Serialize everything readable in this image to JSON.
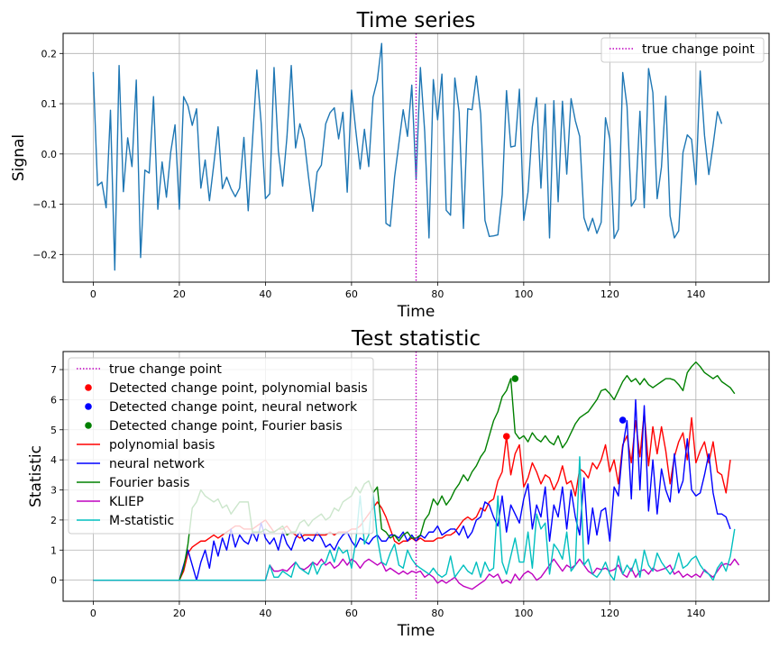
{
  "chart_data": [
    {
      "type": "line",
      "title": "Time series",
      "xlabel": "Time",
      "ylabel": "Signal",
      "xlim": [
        -7,
        157
      ],
      "ylim": [
        -0.255,
        0.24
      ],
      "xticks": [
        0,
        20,
        40,
        60,
        80,
        100,
        120,
        140
      ],
      "yticks": [
        -0.2,
        -0.1,
        0.0,
        0.1,
        0.2
      ],
      "ytick_labels": [
        "−0.2",
        "−0.1",
        "0.0",
        "0.1",
        "0.2"
      ],
      "grid": true,
      "legend_position": "upper right",
      "vline": {
        "x": 75,
        "name": "true change point",
        "color": "#bf00bf"
      },
      "series": [
        {
          "color": "#1f77b4",
          "values": [
            0.163,
            -0.063,
            -0.056,
            -0.107,
            0.087,
            -0.231,
            0.176,
            -0.075,
            0.032,
            -0.025,
            0.147,
            -0.206,
            -0.032,
            -0.038,
            0.114,
            -0.11,
            -0.016,
            -0.086,
            0.004,
            0.058,
            -0.11,
            0.114,
            0.096,
            0.057,
            0.09,
            -0.068,
            -0.012,
            -0.093,
            -0.021,
            0.054,
            -0.069,
            -0.046,
            -0.069,
            -0.085,
            -0.068,
            0.033,
            -0.113,
            0.028,
            0.167,
            0.062,
            -0.089,
            -0.079,
            0.172,
            0.006,
            -0.064,
            0.034,
            0.176,
            0.012,
            0.06,
            0.029,
            -0.045,
            -0.114,
            -0.036,
            -0.022,
            0.06,
            0.082,
            0.092,
            0.03,
            0.083,
            -0.076,
            0.127,
            0.046,
            -0.03,
            0.049,
            -0.025,
            0.113,
            0.147,
            0.22,
            -0.138,
            -0.144,
            -0.046,
            0.021,
            0.088,
            0.035,
            0.137,
            -0.051,
            0.172,
            0.044,
            -0.167,
            0.148,
            0.068,
            0.159,
            -0.112,
            -0.122,
            0.151,
            0.083,
            -0.148,
            0.09,
            0.088,
            0.155,
            0.08,
            -0.132,
            -0.164,
            -0.163,
            -0.161,
            -0.081,
            0.126,
            0.014,
            0.016,
            0.129,
            -0.132,
            -0.076,
            0.054,
            0.112,
            -0.068,
            0.099,
            -0.167,
            0.106,
            -0.095,
            0.105,
            -0.04,
            0.11,
            0.066,
            0.035,
            -0.127,
            -0.153,
            -0.128,
            -0.158,
            -0.136,
            0.072,
            0.03,
            -0.168,
            -0.15,
            0.162,
            0.095,
            -0.104,
            -0.09,
            0.085,
            -0.107,
            0.17,
            0.122,
            -0.089,
            -0.026,
            0.115,
            -0.123,
            -0.167,
            -0.153,
            0.003,
            0.038,
            0.029,
            -0.061,
            0.165,
            0.037,
            -0.041,
            0.018,
            0.084,
            0.06
          ]
        }
      ]
    },
    {
      "type": "line",
      "title": "Test statistic",
      "xlabel": "Time",
      "ylabel": "Statistic",
      "xlim": [
        -7,
        157
      ],
      "ylim": [
        -0.7,
        7.6
      ],
      "xticks": [
        0,
        20,
        40,
        60,
        80,
        100,
        120,
        140
      ],
      "yticks": [
        0,
        1,
        2,
        3,
        4,
        5,
        6,
        7
      ],
      "grid": true,
      "legend_position": "upper left",
      "vline": {
        "x": 75,
        "name": "true change point",
        "color": "#bf00bf"
      },
      "points": [
        {
          "name": "Detected change point, polynomial basis",
          "color": "#ff0000",
          "x": 96,
          "y": 4.78
        },
        {
          "name": "Detected change point, neural network",
          "color": "#0000ff",
          "x": 123,
          "y": 5.32
        },
        {
          "name": "Detected change point, Fourier basis",
          "color": "#008000",
          "x": 98,
          "y": 6.7
        }
      ],
      "series": [
        {
          "name": "polynomial basis",
          "color": "#ff0000",
          "values": [
            0,
            0,
            0,
            0,
            0,
            0,
            0,
            0,
            0,
            0,
            0,
            0,
            0,
            0,
            0,
            0,
            0,
            0,
            0,
            0,
            0,
            0.3,
            0.9,
            1.1,
            1.2,
            1.3,
            1.3,
            1.4,
            1.5,
            1.4,
            1.5,
            1.6,
            1.7,
            1.8,
            1.8,
            1.7,
            1.7,
            1.7,
            1.8,
            1.9,
            2.0,
            1.8,
            1.6,
            1.7,
            1.7,
            1.8,
            1.6,
            1.5,
            1.4,
            1.5,
            1.5,
            1.5,
            1.5,
            1.5,
            1.5,
            1.6,
            1.5,
            1.6,
            1.6,
            1.6,
            1.7,
            1.7,
            1.8,
            2.0,
            2.2,
            2.4,
            2.6,
            2.4,
            2.1,
            1.7,
            1.3,
            1.2,
            1.3,
            1.3,
            1.4,
            1.3,
            1.4,
            1.3,
            1.3,
            1.3,
            1.4,
            1.4,
            1.5,
            1.5,
            1.6,
            1.8,
            2.0,
            2.1,
            2.0,
            2.1,
            2.4,
            2.3,
            2.6,
            2.7,
            3.3,
            3.6,
            4.78,
            3.5,
            4.2,
            4.5,
            3.1,
            3.4,
            3.9,
            3.6,
            3.2,
            3.5,
            3.4,
            3.0,
            3.3,
            3.8,
            3.2,
            3.3,
            2.8,
            3.7,
            3.6,
            3.4,
            3.9,
            3.7,
            4.0,
            4.5,
            3.6,
            4.0,
            3.2,
            4.5,
            4.8,
            3.9,
            5.3,
            4.1,
            5.6,
            3.8,
            5.1,
            4.2,
            5.1,
            4.3,
            3.2,
            4.1,
            4.6,
            4.9,
            4.0,
            5.4,
            3.9,
            4.3,
            4.6,
            3.9,
            4.6,
            3.6,
            3.5,
            2.9,
            4.0
          ]
        },
        {
          "name": "neural network",
          "color": "#0000ff",
          "values": [
            0,
            0,
            0,
            0,
            0,
            0,
            0,
            0,
            0,
            0,
            0,
            0,
            0,
            0,
            0,
            0,
            0,
            0,
            0,
            0,
            0,
            0.5,
            1.0,
            0.5,
            0,
            0.6,
            1.0,
            0.4,
            1.3,
            0.8,
            1.4,
            1.0,
            1.7,
            1.1,
            1.5,
            1.3,
            1.2,
            1.6,
            1.3,
            1.9,
            1.4,
            1.2,
            1.4,
            1.0,
            1.6,
            1.2,
            1.0,
            1.4,
            1.6,
            1.3,
            1.4,
            1.3,
            1.6,
            1.4,
            1.1,
            1.2,
            1.0,
            1.3,
            1.5,
            1.6,
            1.3,
            1.1,
            1.4,
            1.3,
            1.2,
            1.4,
            1.5,
            1.3,
            1.3,
            1.5,
            1.5,
            1.4,
            1.6,
            1.3,
            1.5,
            1.3,
            1.5,
            1.4,
            1.6,
            1.6,
            1.8,
            1.5,
            1.6,
            1.7,
            1.7,
            1.5,
            1.8,
            1.4,
            1.6,
            2.0,
            2.1,
            2.6,
            2.5,
            2.1,
            1.8,
            2.8,
            1.6,
            2.5,
            2.2,
            1.9,
            2.7,
            3.2,
            1.7,
            2.5,
            2.1,
            3.1,
            1.3,
            2.5,
            2.1,
            3.1,
            1.7,
            3.0,
            2.1,
            1.5,
            3.4,
            1.2,
            2.4,
            1.5,
            2.3,
            2.4,
            1.3,
            3.1,
            2.8,
            4.4,
            5.3,
            2.7,
            6.0,
            3.0,
            5.8,
            2.3,
            4.0,
            2.2,
            3.7,
            3.0,
            2.6,
            4.2,
            2.9,
            3.3,
            4.7,
            3.0,
            2.8,
            2.9,
            3.5,
            4.2,
            2.9,
            2.2,
            2.2,
            2.1,
            1.7
          ]
        },
        {
          "name": "Fourier basis",
          "color": "#008000",
          "values": [
            0,
            0,
            0,
            0,
            0,
            0,
            0,
            0,
            0,
            0,
            0,
            0,
            0,
            0,
            0,
            0,
            0,
            0,
            0,
            0,
            0,
            0.4,
            1.2,
            2.4,
            2.6,
            3.0,
            2.8,
            2.7,
            2.6,
            2.7,
            2.4,
            2.5,
            2.2,
            2.4,
            2.6,
            2.6,
            2.6,
            1.6,
            1.6,
            1.6,
            1.7,
            1.6,
            1.6,
            1.7,
            1.8,
            1.5,
            1.6,
            1.6,
            1.9,
            2.0,
            1.8,
            2.0,
            2.1,
            2.2,
            2.0,
            2.1,
            2.4,
            2.3,
            2.6,
            2.7,
            2.8,
            3.1,
            2.9,
            3.2,
            3.3,
            2.9,
            3.1,
            1.7,
            1.6,
            1.4,
            1.5,
            1.3,
            1.5,
            1.6,
            1.4,
            1.4,
            1.5,
            2.0,
            2.2,
            2.7,
            2.5,
            2.8,
            2.5,
            2.7,
            3.0,
            3.2,
            3.5,
            3.3,
            3.6,
            3.8,
            4.1,
            4.3,
            4.8,
            5.3,
            5.6,
            6.1,
            6.3,
            6.7,
            4.9,
            4.7,
            4.8,
            4.6,
            4.9,
            4.7,
            4.6,
            4.8,
            4.6,
            4.5,
            4.8,
            4.4,
            4.6,
            4.9,
            5.2,
            5.4,
            5.5,
            5.6,
            5.8,
            6.0,
            6.3,
            6.35,
            6.2,
            6.0,
            6.3,
            6.6,
            6.8,
            6.6,
            6.7,
            6.5,
            6.7,
            6.5,
            6.4,
            6.5,
            6.6,
            6.7,
            6.7,
            6.65,
            6.5,
            6.3,
            6.9,
            7.1,
            7.25,
            7.1,
            6.9,
            6.8,
            6.7,
            6.8,
            6.6,
            6.5,
            6.4,
            6.2
          ]
        },
        {
          "name": "KLIEP",
          "color": "#bf00bf",
          "values": [
            0,
            0,
            0,
            0,
            0,
            0,
            0,
            0,
            0,
            0,
            0,
            0,
            0,
            0,
            0,
            0,
            0,
            0,
            0,
            0,
            0,
            0,
            0,
            0,
            0,
            0,
            0,
            0,
            0,
            0,
            0,
            0,
            0,
            0,
            0,
            0,
            0,
            0,
            0,
            0,
            0,
            0.5,
            0.3,
            0.3,
            0.35,
            0.3,
            0.45,
            0.6,
            0.4,
            0.35,
            0.45,
            0.6,
            0.5,
            0.7,
            0.5,
            0.6,
            0.4,
            0.5,
            0.7,
            0.5,
            0.7,
            0.6,
            0.4,
            0.6,
            0.7,
            0.6,
            0.5,
            0.6,
            0.3,
            0.4,
            0.3,
            0.2,
            0.3,
            0.2,
            0.3,
            0.25,
            0.3,
            0.1,
            0.2,
            0.1,
            -0.1,
            0,
            -0.1,
            0,
            0.1,
            -0.1,
            -0.2,
            -0.25,
            -0.3,
            -0.2,
            -0.1,
            0,
            0.2,
            0.1,
            0.2,
            -0.1,
            0,
            -0.1,
            0.2,
            0,
            0.2,
            0.3,
            0.2,
            0,
            0.1,
            0.3,
            0.5,
            0.7,
            0.5,
            0.3,
            0.5,
            0.4,
            0.5,
            0.7,
            0.5,
            0.3,
            0.2,
            0.4,
            0.35,
            0.4,
            0.3,
            0.35,
            0.5,
            0.2,
            0.1,
            0.4,
            0.1,
            0.3,
            0.35,
            0.2,
            0.4,
            0.3,
            0.35,
            0.4,
            0.5,
            0.2,
            0.3,
            0.1,
            0.2,
            0.1,
            0.2,
            0.1,
            0.35,
            0.2,
            0.1,
            0.3,
            0.5,
            0.55,
            0.5,
            0.7,
            0.5
          ]
        },
        {
          "name": "M-statistic",
          "color": "#00bfbf",
          "values": [
            0,
            0,
            0,
            0,
            0,
            0,
            0,
            0,
            0,
            0,
            0,
            0,
            0,
            0,
            0,
            0,
            0,
            0,
            0,
            0,
            0,
            0,
            0,
            0,
            0,
            0,
            0,
            0,
            0,
            0,
            0,
            0,
            0,
            0,
            0,
            0,
            0,
            0,
            0,
            0,
            0,
            0.5,
            0.1,
            0.1,
            0.3,
            0.2,
            0.1,
            0.6,
            0.4,
            0.3,
            0.2,
            0.6,
            0.2,
            0.5,
            0.6,
            1.0,
            0.6,
            1.1,
            0.9,
            1.0,
            0.4,
            1.3,
            2.8,
            1.2,
            1.5,
            2.9,
            1.4,
            0.6,
            0.5,
            0.9,
            1.2,
            0.5,
            0.4,
            1.0,
            0.7,
            0.5,
            0.4,
            0.3,
            0.2,
            0.4,
            0.2,
            0.1,
            0.2,
            0.8,
            0.1,
            0.3,
            0.5,
            0.3,
            0.2,
            0.6,
            0.1,
            0.6,
            0.3,
            0.4,
            2.8,
            0.6,
            0.2,
            0.8,
            1.4,
            0.6,
            0.6,
            1.6,
            0.4,
            2.2,
            1.7,
            1.9,
            0.2,
            1.2,
            1.0,
            0.7,
            1.6,
            0.3,
            0.5,
            4.1,
            0.5,
            0.7,
            0.2,
            0.1,
            0.3,
            0.6,
            0.2,
            0.0,
            0.8,
            0.2,
            0.5,
            0.3,
            0.7,
            0.1,
            1.0,
            0.5,
            0.3,
            0.9,
            0.6,
            0.4,
            0.2,
            0.4,
            0.9,
            0.4,
            0.5,
            0.7,
            0.8,
            0.5,
            0.3,
            0.2,
            0.0,
            0.4,
            0.6,
            0.3,
            0.8,
            1.7
          ]
        }
      ]
    }
  ]
}
